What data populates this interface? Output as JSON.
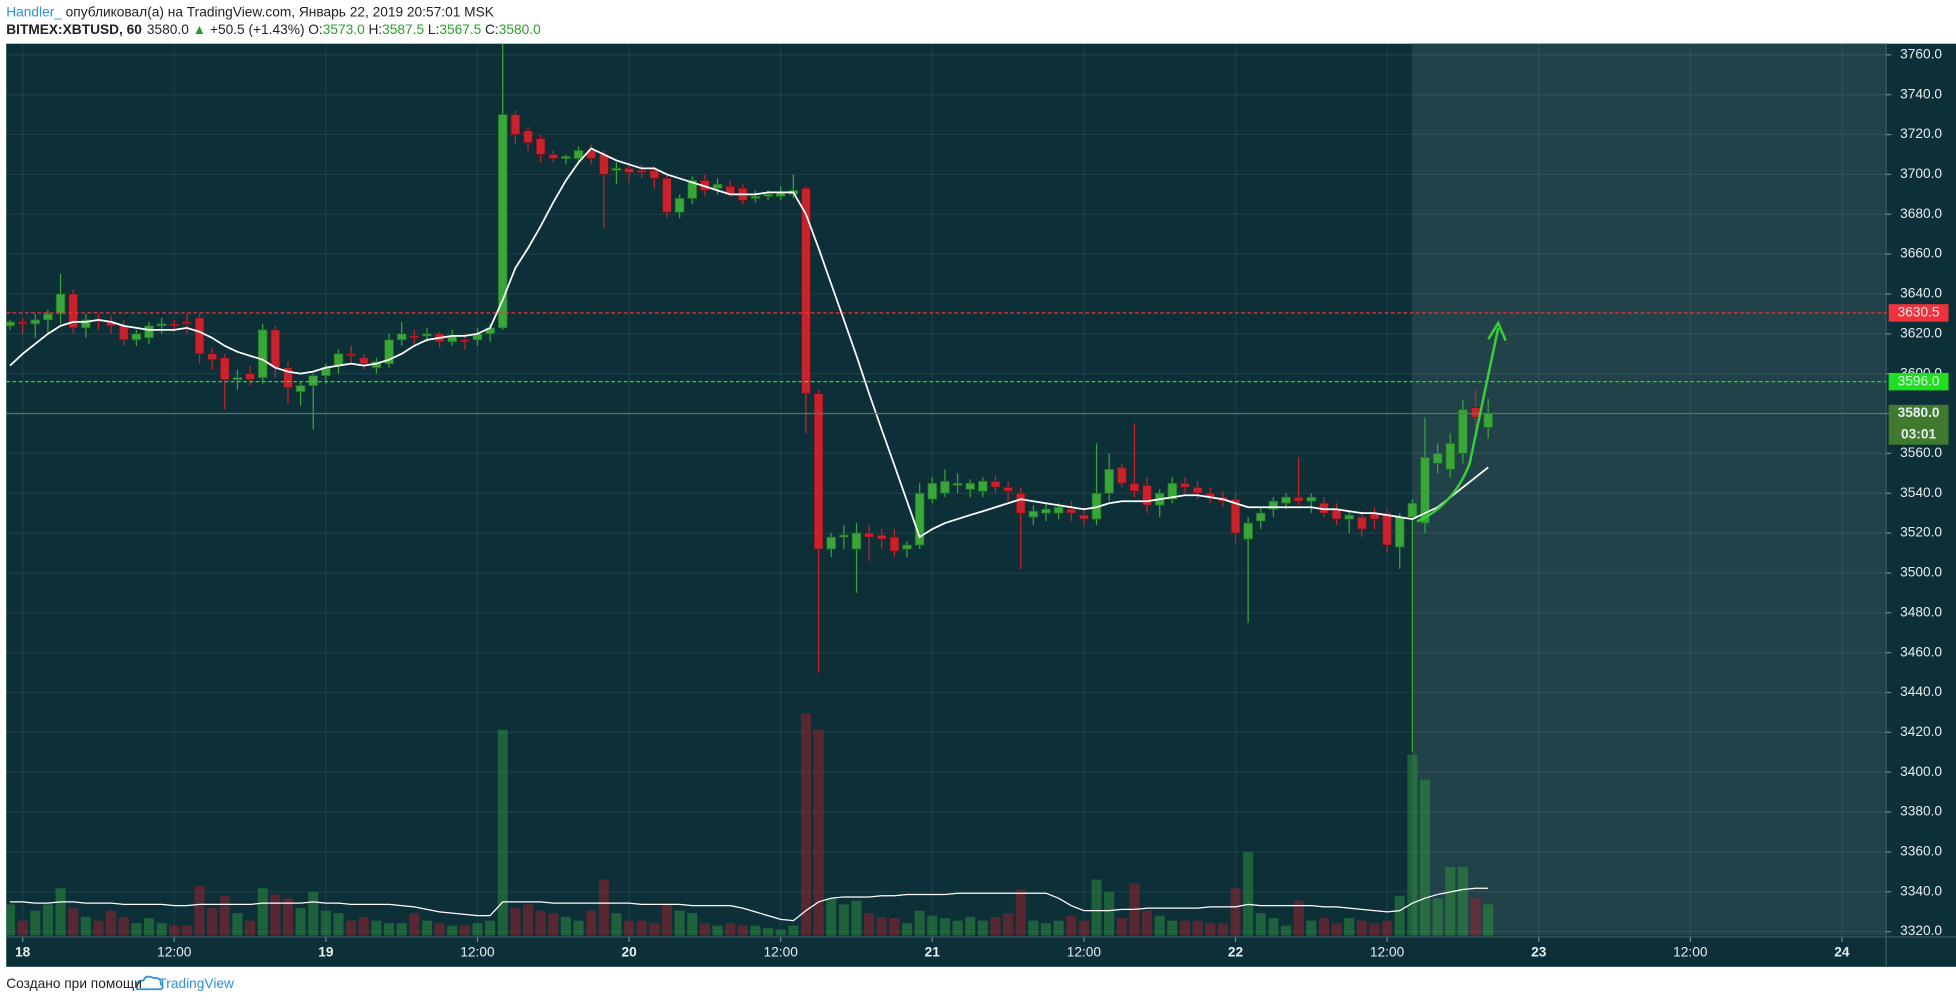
{
  "header": {
    "author": "Handler_",
    "published": "опубликовал(а) на TradingView.com, Январь 22, 2019 20:57:01 MSK",
    "symbol": "BITMEX:XBTUSD, 60",
    "last": "3580.0",
    "change_arrow": "▲",
    "change": "+50.5 (+1.43%)",
    "o_label": "O:",
    "o": "3573.0",
    "h_label": "H:",
    "h": "3587.5",
    "l_label": "L:",
    "l": "3567.5",
    "c_label": "C:",
    "c": "3580.0"
  },
  "footer": {
    "text": "Создано при помощи",
    "brand": "TradingView"
  },
  "chart_data": {
    "type": "candlestick",
    "up_color": "#3aa53a",
    "down_color": "#c8232c",
    "ma_color": "#ffffff",
    "grid": true,
    "xlim": [
      -1.3,
      147.5
    ],
    "xticks": [
      {
        "value": 0,
        "label": "18"
      },
      {
        "value": 12,
        "label": "12:00"
      },
      {
        "value": 24,
        "label": "19"
      },
      {
        "value": 36,
        "label": "12:00"
      },
      {
        "value": 48,
        "label": "20"
      },
      {
        "value": 60,
        "label": "12:00"
      },
      {
        "value": 72,
        "label": "21"
      },
      {
        "value": 84,
        "label": "12:00"
      },
      {
        "value": 96,
        "label": "22"
      },
      {
        "value": 108,
        "label": "12:00"
      },
      {
        "value": 120,
        "label": "23"
      },
      {
        "value": 132,
        "label": "12:00"
      },
      {
        "value": 144,
        "label": "24"
      }
    ],
    "ylim": [
      3318,
      3765.6
    ],
    "yticks": [
      {
        "value": 3320,
        "label": "3320.0"
      },
      {
        "value": 3340,
        "label": "3340.0"
      },
      {
        "value": 3360,
        "label": "3360.0"
      },
      {
        "value": 3380,
        "label": "3380.0"
      },
      {
        "value": 3400,
        "label": "3400.0"
      },
      {
        "value": 3420,
        "label": "3420.0"
      },
      {
        "value": 3440,
        "label": "3440.0"
      },
      {
        "value": 3460,
        "label": "3460.0"
      },
      {
        "value": 3480,
        "label": "3480.0"
      },
      {
        "value": 3500,
        "label": "3500.0"
      },
      {
        "value": 3520,
        "label": "3520.0"
      },
      {
        "value": 3540,
        "label": "3540.0"
      },
      {
        "value": 3560,
        "label": "3560.0"
      },
      {
        "value": 3580,
        "label": "3580.0"
      },
      {
        "value": 3600,
        "label": "3600.0"
      },
      {
        "value": 3620,
        "label": "3620.0"
      },
      {
        "value": 3640,
        "label": "3640.0"
      },
      {
        "value": 3660,
        "label": "3660.0"
      },
      {
        "value": 3680,
        "label": "3680.0"
      },
      {
        "value": 3700,
        "label": "3700.0"
      },
      {
        "value": 3720,
        "label": "3720.0"
      },
      {
        "value": 3740,
        "label": "3740.0"
      },
      {
        "value": 3760,
        "label": "3760.0"
      }
    ],
    "levels": [
      {
        "value": 3630.5,
        "label": "3630.5",
        "color": "#f0323c"
      },
      {
        "value": 3596,
        "label": "3596.0",
        "color": "#1fe01f"
      }
    ],
    "last_price": {
      "value": 3580,
      "label": "3580.0",
      "countdown": "03:01",
      "color": "#3f7a2e"
    },
    "x": [
      -1,
      0,
      1,
      2,
      3,
      4,
      5,
      6,
      7,
      8,
      9,
      10,
      11,
      12,
      13,
      14,
      15,
      16,
      17,
      18,
      19,
      20,
      21,
      22,
      23,
      24,
      25,
      26,
      27,
      28,
      29,
      30,
      31,
      32,
      33,
      34,
      35,
      36,
      37,
      38,
      39,
      40,
      41,
      42,
      43,
      44,
      45,
      46,
      47,
      48,
      49,
      50,
      51,
      52,
      53,
      54,
      55,
      56,
      57,
      58,
      59,
      60,
      61,
      62,
      63,
      64,
      65,
      66,
      67,
      68,
      69,
      70,
      71,
      72,
      73,
      74,
      75,
      76,
      77,
      78,
      79,
      80,
      81,
      82,
      83,
      84,
      85,
      86,
      87,
      88,
      89,
      90,
      91,
      92,
      93,
      94,
      95,
      96,
      97,
      98,
      99,
      100,
      101,
      102,
      103,
      104,
      105,
      106,
      107,
      108,
      109,
      110,
      111,
      112,
      113,
      114,
      115,
      116
    ],
    "candles": [
      [
        3624,
        3627,
        3622,
        3626
      ],
      [
        3626,
        3628,
        3620,
        3625
      ],
      [
        3625,
        3630,
        3618,
        3627
      ],
      [
        3627,
        3632,
        3620,
        3630
      ],
      [
        3630,
        3650,
        3625,
        3640
      ],
      [
        3640,
        3642,
        3620,
        3623
      ],
      [
        3623,
        3630,
        3618,
        3627
      ],
      [
        3627,
        3630,
        3622,
        3626
      ],
      [
        3626,
        3629,
        3620,
        3624
      ],
      [
        3624,
        3627,
        3614,
        3617
      ],
      [
        3617,
        3622,
        3614,
        3620
      ],
      [
        3618,
        3626,
        3615,
        3624
      ],
      [
        3624,
        3628,
        3620,
        3625
      ],
      [
        3625,
        3627,
        3621,
        3624
      ],
      [
        3626,
        3630,
        3620,
        3625
      ],
      [
        3628,
        3630,
        3605,
        3610
      ],
      [
        3610,
        3613,
        3602,
        3607
      ],
      [
        3608,
        3610,
        3582,
        3597
      ],
      [
        3597,
        3602,
        3592,
        3598
      ],
      [
        3600,
        3604,
        3594,
        3597
      ],
      [
        3598,
        3625,
        3595,
        3622
      ],
      [
        3622,
        3624,
        3598,
        3603
      ],
      [
        3603,
        3606,
        3585,
        3593
      ],
      [
        3591,
        3596,
        3584,
        3594
      ],
      [
        3594,
        3600,
        3572,
        3599
      ],
      [
        3599,
        3605,
        3595,
        3603
      ],
      [
        3604,
        3612,
        3600,
        3610
      ],
      [
        3610,
        3614,
        3605,
        3609
      ],
      [
        3608,
        3610,
        3602,
        3605
      ],
      [
        3603,
        3608,
        3600,
        3606
      ],
      [
        3605,
        3620,
        3603,
        3617
      ],
      [
        3617,
        3626,
        3614,
        3620
      ],
      [
        3619,
        3622,
        3615,
        3618
      ],
      [
        3619,
        3623,
        3616,
        3620
      ],
      [
        3620,
        3621,
        3613,
        3616
      ],
      [
        3616,
        3622,
        3614,
        3619
      ],
      [
        3617,
        3620,
        3612,
        3616
      ],
      [
        3617,
        3623,
        3614,
        3620
      ],
      [
        3620,
        3625,
        3616,
        3623
      ],
      [
        3623,
        3775,
        3622,
        3730
      ],
      [
        3730,
        3732,
        3715,
        3720
      ],
      [
        3722,
        3724,
        3712,
        3716
      ],
      [
        3718,
        3720,
        3706,
        3710
      ],
      [
        3710,
        3712,
        3706,
        3708
      ],
      [
        3708,
        3710,
        3705,
        3709
      ],
      [
        3708,
        3714,
        3706,
        3712
      ],
      [
        3712,
        3715,
        3705,
        3708
      ],
      [
        3710,
        3712,
        3673,
        3700
      ],
      [
        3702,
        3706,
        3695,
        3703
      ],
      [
        3703,
        3706,
        3696,
        3701
      ],
      [
        3702,
        3705,
        3698,
        3701
      ],
      [
        3702,
        3704,
        3693,
        3698
      ],
      [
        3698,
        3700,
        3678,
        3681
      ],
      [
        3681,
        3690,
        3678,
        3688
      ],
      [
        3688,
        3699,
        3685,
        3697
      ],
      [
        3697,
        3700,
        3689,
        3692
      ],
      [
        3693,
        3698,
        3690,
        3695
      ],
      [
        3694,
        3697,
        3689,
        3690
      ],
      [
        3693,
        3695,
        3685,
        3687
      ],
      [
        3688,
        3692,
        3686,
        3689
      ],
      [
        3689,
        3692,
        3687,
        3690
      ],
      [
        3689,
        3694,
        3687,
        3691
      ],
      [
        3690,
        3700,
        3688,
        3692
      ],
      [
        3693,
        3694,
        3570,
        3590
      ],
      [
        3590,
        3592,
        3450,
        3512
      ],
      [
        3512,
        3520,
        3508,
        3518
      ],
      [
        3518,
        3524,
        3512,
        3519
      ],
      [
        3512,
        3525,
        3490,
        3520
      ],
      [
        3520,
        3524,
        3506,
        3518
      ],
      [
        3519,
        3522,
        3512,
        3517
      ],
      [
        3518,
        3522,
        3508,
        3511
      ],
      [
        3512,
        3516,
        3508,
        3514
      ],
      [
        3514,
        3545,
        3512,
        3540
      ],
      [
        3537,
        3548,
        3535,
        3545
      ],
      [
        3540,
        3552,
        3538,
        3546
      ],
      [
        3544,
        3550,
        3540,
        3545
      ],
      [
        3542,
        3547,
        3538,
        3545
      ],
      [
        3541,
        3548,
        3538,
        3546
      ],
      [
        3546,
        3549,
        3540,
        3543
      ],
      [
        3543,
        3546,
        3536,
        3541
      ],
      [
        3540,
        3543,
        3502,
        3530
      ],
      [
        3528,
        3534,
        3524,
        3531
      ],
      [
        3530,
        3535,
        3526,
        3532
      ],
      [
        3530,
        3535,
        3527,
        3533
      ],
      [
        3532,
        3536,
        3526,
        3530
      ],
      [
        3529,
        3532,
        3524,
        3527
      ],
      [
        3527,
        3565,
        3524,
        3540
      ],
      [
        3540,
        3560,
        3536,
        3552
      ],
      [
        3553,
        3555,
        3543,
        3545
      ],
      [
        3545,
        3575,
        3538,
        3541
      ],
      [
        3544,
        3548,
        3530,
        3534
      ],
      [
        3534,
        3542,
        3528,
        3540
      ],
      [
        3537,
        3548,
        3535,
        3545
      ],
      [
        3545,
        3548,
        3540,
        3543
      ],
      [
        3543,
        3546,
        3537,
        3540
      ],
      [
        3540,
        3543,
        3535,
        3538
      ],
      [
        3538,
        3541,
        3533,
        3536
      ],
      [
        3537,
        3540,
        3515,
        3520
      ],
      [
        3517,
        3528,
        3475,
        3525
      ],
      [
        3526,
        3533,
        3522,
        3530
      ],
      [
        3532,
        3538,
        3528,
        3536
      ],
      [
        3535,
        3540,
        3532,
        3538
      ],
      [
        3538,
        3558,
        3534,
        3536
      ],
      [
        3536,
        3540,
        3530,
        3538
      ],
      [
        3535,
        3538,
        3528,
        3530
      ],
      [
        3532,
        3535,
        3524,
        3527
      ],
      [
        3527,
        3531,
        3520,
        3529
      ],
      [
        3528,
        3531,
        3518,
        3522
      ],
      [
        3530,
        3533,
        3522,
        3527
      ],
      [
        3530,
        3532,
        3510,
        3514
      ],
      [
        3513,
        3530,
        3502,
        3528
      ],
      [
        3528,
        3537,
        3410,
        3535
      ],
      [
        3525,
        3578,
        3520,
        3558
      ],
      [
        3555,
        3565,
        3550,
        3560
      ],
      [
        3552,
        3570,
        3548,
        3565
      ],
      [
        3560,
        3587,
        3555,
        3582
      ],
      [
        3583,
        3592,
        3572,
        3578
      ],
      [
        3573,
        3587.5,
        3567.5,
        3580
      ]
    ],
    "volume": [
      25,
      12,
      20,
      25,
      38,
      22,
      15,
      12,
      20,
      15,
      10,
      14,
      10,
      8,
      8,
      40,
      22,
      32,
      18,
      12,
      38,
      33,
      30,
      22,
      35,
      20,
      18,
      12,
      15,
      12,
      10,
      10,
      18,
      12,
      10,
      8,
      8,
      10,
      12,
      165,
      22,
      25,
      20,
      18,
      15,
      12,
      20,
      45,
      18,
      12,
      12,
      10,
      25,
      20,
      18,
      10,
      8,
      10,
      8,
      8,
      6,
      5,
      8,
      178,
      165,
      30,
      25,
      28,
      18,
      15,
      14,
      10,
      20,
      16,
      14,
      12,
      15,
      12,
      15,
      18,
      37,
      12,
      10,
      12,
      16,
      12,
      45,
      35,
      14,
      42,
      20,
      16,
      12,
      12,
      12,
      10,
      10,
      38,
      67,
      18,
      14,
      8,
      28,
      12,
      14,
      10,
      14,
      12,
      10,
      12,
      32,
      145,
      125,
      30,
      55,
      55,
      30,
      25
    ],
    "ma": [
      3604,
      3610,
      3615,
      3620,
      3624,
      3626,
      3626,
      3627,
      3626,
      3624,
      3623,
      3622,
      3622,
      3622,
      3623,
      3621,
      3618,
      3614,
      3611,
      3609,
      3607,
      3603,
      3601,
      3600,
      3601,
      3603,
      3604,
      3605,
      3604,
      3605,
      3607,
      3610,
      3614,
      3617,
      3618,
      3619,
      3619,
      3620,
      3623,
      3637,
      3653,
      3663,
      3674,
      3686,
      3697,
      3706,
      3713,
      3710,
      3707,
      3705,
      3703,
      3703,
      3700,
      3698,
      3696,
      3694,
      3692,
      3690,
      3690,
      3690,
      3691,
      3691,
      3691,
      3680,
      3663,
      3645,
      3627,
      3609,
      3590,
      3572,
      3554,
      3536,
      3518,
      3522,
      3525,
      3527,
      3529,
      3531,
      3533,
      3535,
      3537,
      3536,
      3535,
      3534,
      3533,
      3532,
      3533,
      3535,
      3536,
      3536,
      3536,
      3537,
      3538,
      3539,
      3539,
      3538,
      3537,
      3535,
      3533,
      3533,
      3533,
      3533,
      3533,
      3533,
      3532,
      3532,
      3531,
      3530,
      3530,
      3529,
      3528,
      3527,
      3530,
      3533,
      3538,
      3543,
      3548,
      3553
    ],
    "volume_ma": [
      27,
      27,
      26,
      26,
      27,
      27,
      26,
      26,
      26,
      25,
      25,
      25,
      25,
      24,
      24,
      25,
      25,
      25,
      25,
      25,
      26,
      26,
      26,
      26,
      27,
      26,
      26,
      25,
      25,
      25,
      25,
      24,
      23,
      21,
      19,
      18,
      17,
      16,
      16,
      27,
      27,
      27,
      27,
      26,
      26,
      26,
      26,
      26,
      26,
      26,
      25,
      25,
      25,
      25,
      24,
      24,
      24,
      24,
      22,
      19,
      16,
      13,
      12,
      20,
      27,
      30,
      31,
      31,
      31,
      32,
      32,
      33,
      33,
      33,
      33,
      34,
      34,
      34,
      34,
      34,
      34,
      34,
      34,
      30,
      24,
      20,
      20,
      20,
      21,
      21,
      22,
      22,
      22,
      22,
      22,
      23,
      23,
      23,
      25,
      24,
      24,
      24,
      24,
      24,
      23,
      23,
      22,
      21,
      20,
      19,
      20,
      26,
      30,
      33,
      35,
      37,
      38,
      38
    ]
  }
}
